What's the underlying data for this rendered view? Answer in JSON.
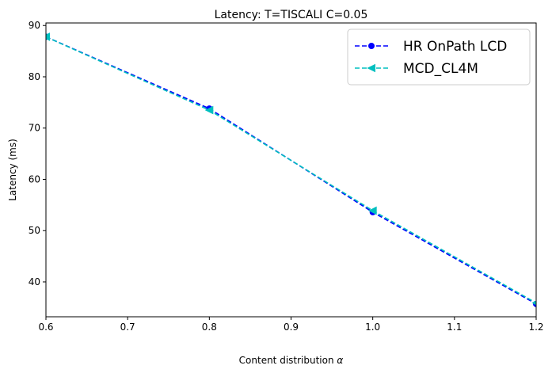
{
  "chart_data": {
    "type": "line",
    "title": "Latency: T=TISCALI C=0.05",
    "xlabel_text": "Content distribution ",
    "xlabel_symbol": "α",
    "ylabel": "Latency (ms)",
    "xlim": [
      0.6,
      1.2
    ],
    "ylim": [
      33.2,
      90.5
    ],
    "xticks": [
      0.6,
      0.7,
      0.8,
      0.9,
      1.0,
      1.1,
      1.2
    ],
    "xtick_labels": [
      "0.6",
      "0.7",
      "0.8",
      "0.9",
      "1.0",
      "1.1",
      "1.2"
    ],
    "yticks": [
      40,
      50,
      60,
      70,
      80,
      90
    ],
    "ytick_labels": [
      "40",
      "50",
      "60",
      "70",
      "80",
      "90"
    ],
    "grid": false,
    "legend_position": "top-right",
    "series": [
      {
        "name": "HR OnPath LCD",
        "color": "#0000ff",
        "marker": "circle",
        "linestyle": "dashed",
        "x": [
          0.6,
          0.8,
          1.0,
          1.2
        ],
        "y": [
          87.8,
          73.8,
          53.6,
          35.7
        ]
      },
      {
        "name": "MCD_CL4M",
        "color": "#00bfbf",
        "marker": "triangle-left",
        "linestyle": "dashed",
        "x": [
          0.6,
          0.8,
          1.0,
          1.2
        ],
        "y": [
          87.8,
          73.5,
          53.9,
          35.9
        ]
      }
    ]
  }
}
